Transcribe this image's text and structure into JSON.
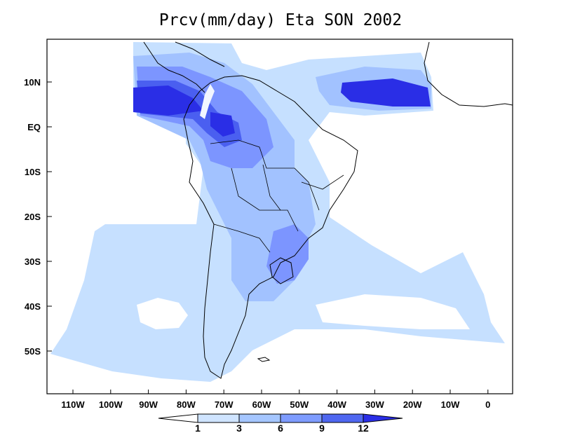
{
  "title": "Prcv(mm/day) Eta SON 2002",
  "lat_labels": [
    "10N",
    "EQ",
    "10S",
    "20S",
    "30S",
    "40S",
    "50S"
  ],
  "lon_labels": [
    "110W",
    "100W",
    "90W",
    "80W",
    "70W",
    "60W",
    "50W",
    "40W",
    "30W",
    "20W",
    "10W",
    "0"
  ],
  "colorbar": {
    "ticks": [
      "1",
      "3",
      "6",
      "9",
      "12"
    ],
    "colors": [
      "#ffffff",
      "#cfe4ff",
      "#a5c6ff",
      "#7e9cff",
      "#4f67f0",
      "#2a2ee6"
    ]
  },
  "fill_colors": {
    "light": "#c6e0ff",
    "medium": "#a2c2ff",
    "dark": "#7c95ff",
    "deep": "#4a5ff0",
    "deepest": "#2a2ee6"
  }
}
